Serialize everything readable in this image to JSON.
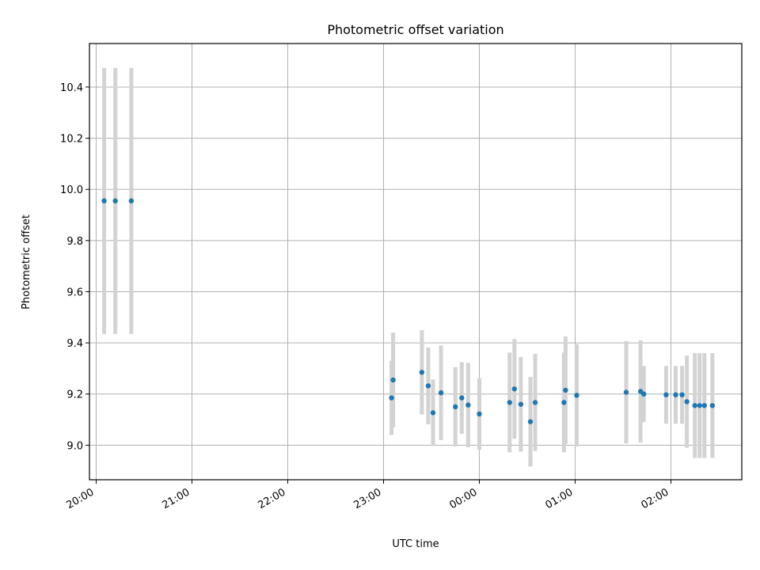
{
  "chart_data": {
    "type": "scatter",
    "title": "Photometric offset variation",
    "xlabel": "UTC time",
    "ylabel": "Photometric offset",
    "x_tick_labels": [
      "20:00",
      "21:00",
      "22:00",
      "23:00",
      "00:00",
      "01:00",
      "02:00"
    ],
    "y_tick_labels": [
      "9.0",
      "9.2",
      "9.4",
      "9.6",
      "9.8",
      "10.0",
      "10.2",
      "10.4"
    ],
    "y_ticks": [
      9.0,
      9.2,
      9.4,
      9.6,
      9.8,
      10.0,
      10.2,
      10.4
    ],
    "x_ticks_hours": [
      20,
      21,
      22,
      23,
      24,
      25,
      26
    ],
    "xlim_hours": [
      19.93,
      26.74
    ],
    "ylim": [
      8.865,
      10.57
    ],
    "grid": true,
    "marker_color": "#1f77b4",
    "errorbar_color": "#d3d3d3",
    "points": [
      {
        "time": "20:05",
        "y": 9.955,
        "yerr": 0.52
      },
      {
        "time": "20:12",
        "y": 9.955,
        "yerr": 0.52
      },
      {
        "time": "20:22",
        "y": 9.955,
        "yerr": 0.52
      },
      {
        "time": "23:05",
        "y": 9.185,
        "yerr": 0.145
      },
      {
        "time": "23:06",
        "y": 9.255,
        "yerr": 0.185
      },
      {
        "time": "23:24",
        "y": 9.285,
        "yerr": 0.165
      },
      {
        "time": "23:28",
        "y": 9.232,
        "yerr": 0.15
      },
      {
        "time": "23:31",
        "y": 9.127,
        "yerr": 0.13
      },
      {
        "time": "23:36",
        "y": 9.205,
        "yerr": 0.185
      },
      {
        "time": "23:45",
        "y": 9.15,
        "yerr": 0.155
      },
      {
        "time": "23:49",
        "y": 9.185,
        "yerr": 0.14
      },
      {
        "time": "23:53",
        "y": 9.157,
        "yerr": 0.165
      },
      {
        "time": "00:00",
        "y": 9.122,
        "yerr": 0.14
      },
      {
        "time": "00:19",
        "y": 9.167,
        "yerr": 0.195
      },
      {
        "time": "00:22",
        "y": 9.22,
        "yerr": 0.195
      },
      {
        "time": "00:26",
        "y": 9.16,
        "yerr": 0.185
      },
      {
        "time": "00:32",
        "y": 9.092,
        "yerr": 0.175
      },
      {
        "time": "00:35",
        "y": 9.167,
        "yerr": 0.19
      },
      {
        "time": "00:53",
        "y": 9.167,
        "yerr": 0.195
      },
      {
        "time": "00:54",
        "y": 9.215,
        "yerr": 0.21
      },
      {
        "time": "01:01",
        "y": 9.195,
        "yerr": 0.2
      },
      {
        "time": "01:32",
        "y": 9.207,
        "yerr": 0.2
      },
      {
        "time": "01:41",
        "y": 9.21,
        "yerr": 0.2
      },
      {
        "time": "01:43",
        "y": 9.2,
        "yerr": 0.11
      },
      {
        "time": "01:57",
        "y": 9.197,
        "yerr": 0.113
      },
      {
        "time": "02:03",
        "y": 9.197,
        "yerr": 0.113
      },
      {
        "time": "02:07",
        "y": 9.197,
        "yerr": 0.113
      },
      {
        "time": "02:10",
        "y": 9.17,
        "yerr": 0.18
      },
      {
        "time": "02:15",
        "y": 9.155,
        "yerr": 0.205
      },
      {
        "time": "02:18",
        "y": 9.155,
        "yerr": 0.205
      },
      {
        "time": "02:21",
        "y": 9.155,
        "yerr": 0.205
      },
      {
        "time": "02:26",
        "y": 9.155,
        "yerr": 0.205
      }
    ]
  }
}
